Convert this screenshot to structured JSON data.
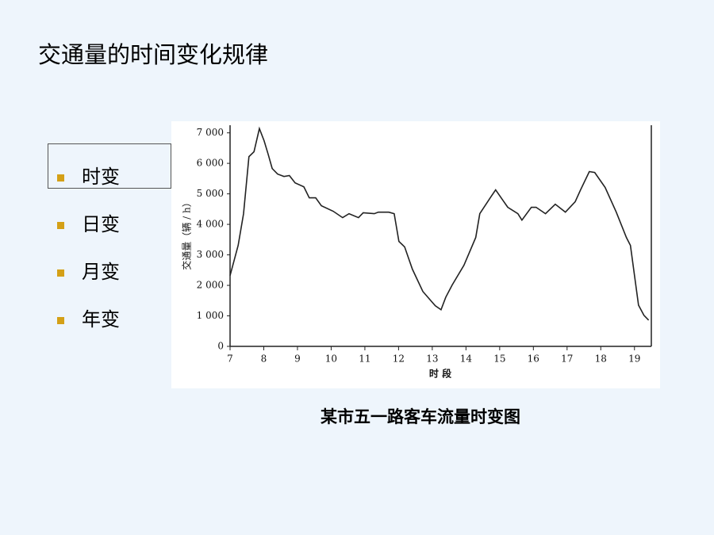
{
  "header": {
    "title": "交通量的时间变化规律"
  },
  "bullets": [
    "时变",
    "日变",
    "月变",
    "年变"
  ],
  "chart_data": {
    "type": "line",
    "title": "某市五一路客车流量时变图",
    "x_label": "时 段",
    "y_label": "交通量（辆 / h）",
    "x": [
      7.0,
      7.24,
      7.4,
      7.56,
      7.71,
      7.87,
      8.01,
      8.13,
      8.25,
      8.41,
      8.6,
      8.76,
      8.93,
      9.19,
      9.35,
      9.54,
      9.71,
      10.06,
      10.34,
      10.53,
      10.81,
      10.95,
      11.28,
      11.4,
      11.71,
      11.87,
      12.01,
      12.18,
      12.41,
      12.72,
      13.09,
      13.26,
      13.4,
      13.59,
      13.94,
      14.29,
      14.41,
      14.72,
      14.88,
      15.24,
      15.54,
      15.66,
      15.94,
      16.08,
      16.36,
      16.65,
      16.95,
      17.24,
      17.4,
      17.66,
      17.82,
      18.13,
      18.46,
      18.76,
      18.88,
      19.12,
      19.28,
      19.42
    ],
    "series": [
      {
        "name": "交通量",
        "color": "#222222",
        "values": [
          2320,
          3310,
          4350,
          6220,
          6380,
          7140,
          6740,
          6300,
          5830,
          5650,
          5570,
          5600,
          5360,
          5230,
          4870,
          4870,
          4610,
          4430,
          4220,
          4350,
          4220,
          4380,
          4350,
          4400,
          4400,
          4350,
          3440,
          3260,
          2530,
          1800,
          1330,
          1200,
          1610,
          2010,
          2660,
          3570,
          4350,
          4870,
          5130,
          4560,
          4350,
          4140,
          4560,
          4560,
          4350,
          4660,
          4400,
          4740,
          5130,
          5730,
          5700,
          5210,
          4400,
          3570,
          3310,
          1350,
          1020,
          860
        ]
      }
    ],
    "xlim": [
      7,
      19.5
    ],
    "ylim": [
      0,
      7250
    ],
    "xticks": [
      7,
      8,
      9,
      10,
      11,
      12,
      13,
      14,
      15,
      16,
      17,
      18,
      19
    ],
    "yticks": [
      0,
      {
        "value": 1000,
        "label": "1 000"
      },
      {
        "value": 2000,
        "label": "2 000"
      },
      {
        "value": 3000,
        "label": "3 000"
      },
      {
        "value": 4000,
        "label": "4 000"
      },
      {
        "value": 5000,
        "label": "5 000"
      },
      {
        "value": 6000,
        "label": "6 000"
      },
      {
        "value": 7000,
        "label": "7 000"
      }
    ],
    "grid": false
  }
}
